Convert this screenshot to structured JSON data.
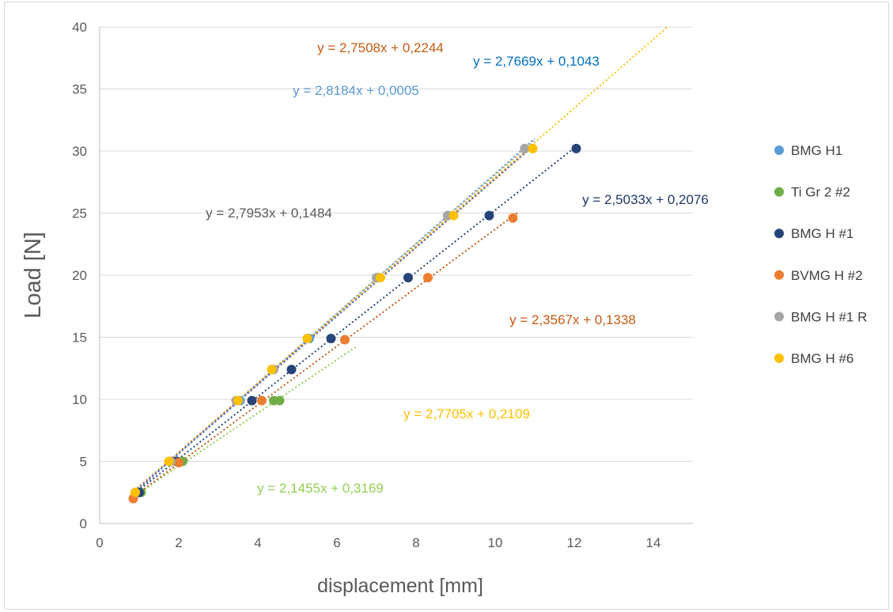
{
  "chart_data": {
    "type": "scatter",
    "title": "",
    "xlabel": "displacement [mm]",
    "ylabel": "Load [N]",
    "xlim": [
      0,
      15
    ],
    "ylim": [
      0,
      40
    ],
    "x_ticks": [
      0,
      2,
      4,
      6,
      8,
      10,
      12,
      14
    ],
    "y_ticks": [
      0,
      5,
      10,
      15,
      20,
      25,
      30,
      35,
      40
    ],
    "grid": "horizontal",
    "legend_position": "right",
    "series": [
      {
        "name": "BMG H1",
        "color": "#5b9bd5",
        "points": [
          [
            1.0,
            2.5
          ],
          [
            1.95,
            5.0
          ],
          [
            3.55,
            9.9
          ],
          [
            5.3,
            14.9
          ],
          [
            7.05,
            19.8
          ],
          [
            8.8,
            24.8
          ],
          [
            10.75,
            30.2
          ]
        ],
        "trendline": {
          "slope": 2.8184,
          "intercept": 0.0005,
          "x_range": [
            0.8,
            11.0
          ],
          "color": "#5b9bd5"
        }
      },
      {
        "name": "Ti Gr 2 #2",
        "color": "#70ad47",
        "points": [
          [
            1.05,
            2.5
          ],
          [
            2.1,
            5.0
          ],
          [
            4.4,
            9.9
          ],
          [
            4.55,
            9.9
          ]
        ],
        "trendline": {
          "slope": 2.1455,
          "intercept": 0.3169,
          "x_range": [
            0.8,
            6.5
          ],
          "color": "#92d050"
        }
      },
      {
        "name": "BMG H #1",
        "color": "#264478",
        "points": [
          [
            1.0,
            2.5
          ],
          [
            1.95,
            5.0
          ],
          [
            3.85,
            9.9
          ],
          [
            4.85,
            12.4
          ],
          [
            5.85,
            14.9
          ],
          [
            7.8,
            19.8
          ],
          [
            9.85,
            24.8
          ],
          [
            12.05,
            30.2
          ]
        ],
        "trendline": {
          "slope": 2.5033,
          "intercept": 0.2076,
          "x_range": [
            0.8,
            12.1
          ],
          "color": "#264478"
        }
      },
      {
        "name": "BVMG H #2",
        "color": "#ed7d31",
        "points": [
          [
            0.85,
            2.0
          ],
          [
            2.0,
            4.9
          ],
          [
            4.1,
            9.9
          ],
          [
            6.2,
            14.8
          ],
          [
            8.3,
            19.8
          ],
          [
            10.45,
            24.6
          ]
        ],
        "trendline": {
          "slope": 2.3567,
          "intercept": 0.1338,
          "x_range": [
            0.8,
            10.6
          ],
          "color": "#c55a11"
        }
      },
      {
        "name": "BMG H #1 R",
        "color": "#a5a5a5",
        "points": [
          [
            0.9,
            2.5
          ],
          [
            1.8,
            5.0
          ],
          [
            3.45,
            9.9
          ],
          [
            4.4,
            12.4
          ],
          [
            5.25,
            14.9
          ],
          [
            7.0,
            19.8
          ],
          [
            8.8,
            24.8
          ],
          [
            10.75,
            30.2
          ]
        ],
        "trendline": {
          "slope": 2.7953,
          "intercept": 0.1484,
          "x_range": [
            0.8,
            11.0
          ],
          "color": "#a5a5a5"
        }
      },
      {
        "name": "BMG H #6",
        "color": "#ffc000",
        "points": [
          [
            0.9,
            2.5
          ],
          [
            1.75,
            5.0
          ],
          [
            3.5,
            9.9
          ],
          [
            4.35,
            12.4
          ],
          [
            5.25,
            14.9
          ],
          [
            7.1,
            19.8
          ],
          [
            8.95,
            24.8
          ],
          [
            10.95,
            30.2
          ]
        ],
        "trendline": {
          "slope": 2.7705,
          "intercept": 0.2109,
          "x_range": [
            0.8,
            14.6
          ],
          "color": "#ffc000"
        }
      }
    ],
    "annotations": [
      {
        "text": "y = 2,7508x + 0,2244",
        "color": "#c55a11"
      },
      {
        "text": "y = 2,7669x + 0,1043",
        "color": "#0070c0"
      },
      {
        "text": "y = 2,8184x + 0,0005",
        "color": "#5b9bd5"
      },
      {
        "text": "y = 2,7953x + 0,1484",
        "color": "#595959"
      },
      {
        "text": "y = 2,5033x + 0,2076",
        "color": "#1f3864"
      },
      {
        "text": "y = 2,3567x + 0,1338",
        "color": "#c55a11"
      },
      {
        "text": "y = 2,7705x + 0,2109",
        "color": "#ffc000"
      },
      {
        "text": "y = 2,1455x + 0,3169",
        "color": "#92d050"
      }
    ],
    "extra_trendlines": [
      {
        "slope": 2.7508,
        "intercept": 0.2244,
        "x_range": [
          0.8,
          11.0
        ],
        "color": "#ed7d31"
      },
      {
        "slope": 2.7669,
        "intercept": 0.1043,
        "x_range": [
          0.8,
          11.0
        ],
        "color": "#4472c4"
      }
    ]
  }
}
